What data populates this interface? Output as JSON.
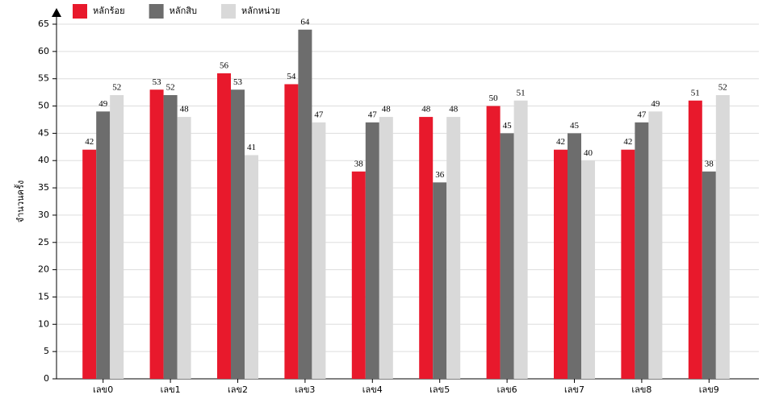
{
  "chart_data": {
    "type": "bar",
    "y_label": "จำนวนครั้ง",
    "categories": [
      "เลข0",
      "เลข1",
      "เลข2",
      "เลข3",
      "เลข4",
      "เลข5",
      "เลข6",
      "เลข7",
      "เลข8",
      "เลข9"
    ],
    "series": [
      {
        "name": "หลักร้อย",
        "color": "#e8192c",
        "values": [
          42,
          53,
          56,
          54,
          38,
          48,
          50,
          42,
          42,
          51
        ]
      },
      {
        "name": "หลักสิบ",
        "color": "#6d6d6d",
        "values": [
          49,
          52,
          53,
          64,
          47,
          36,
          45,
          45,
          47,
          38
        ]
      },
      {
        "name": "หลักหน่วย",
        "color": "#d9d9d9",
        "values": [
          52,
          48,
          41,
          47,
          48,
          48,
          51,
          40,
          49,
          52
        ]
      }
    ],
    "ylim": [
      0,
      65
    ],
    "yticks": [
      0,
      5,
      10,
      15,
      20,
      25,
      30,
      35,
      40,
      45,
      50,
      55,
      60,
      65
    ],
    "grid": true
  }
}
